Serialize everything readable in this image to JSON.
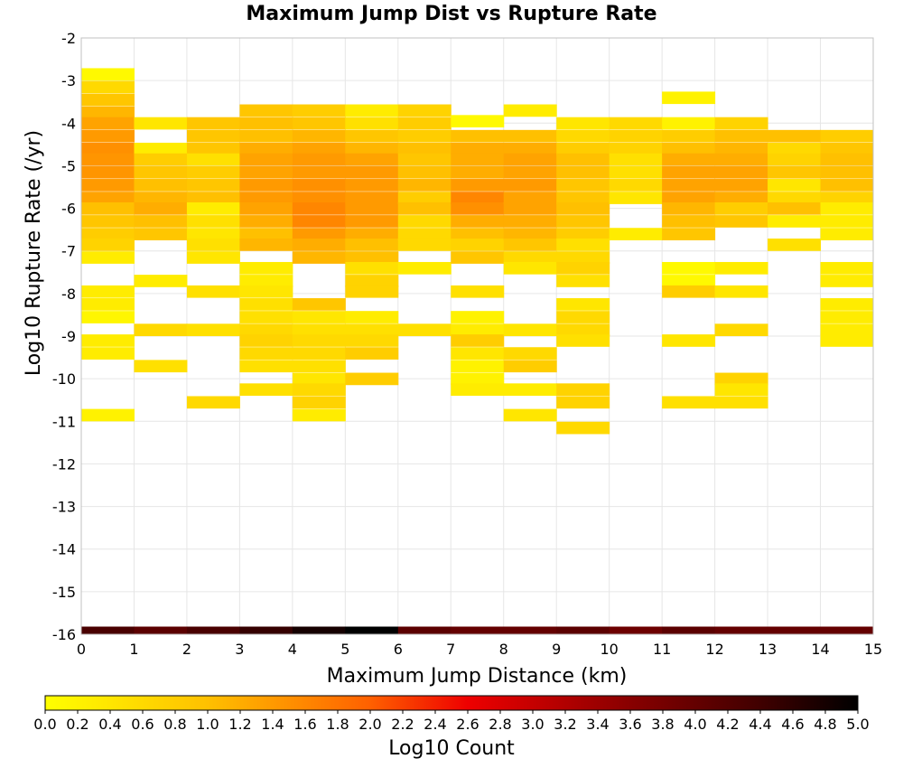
{
  "chart_data": {
    "type": "heatmap",
    "title": "Maximum Jump Dist vs Rupture Rate",
    "xlabel": "Maximum Jump Distance (km)",
    "ylabel": "Log10 Rupture Rate (/yr)",
    "xlim": [
      0,
      15
    ],
    "ylim": [
      -16,
      -2
    ],
    "x_ticks": [
      "0",
      "1",
      "2",
      "3",
      "4",
      "5",
      "6",
      "7",
      "8",
      "9",
      "10",
      "11",
      "12",
      "13",
      "14",
      "15"
    ],
    "y_ticks": [
      "-2",
      "-3",
      "-4",
      "-5",
      "-6",
      "-7",
      "-8",
      "-9",
      "-10",
      "-11",
      "-12",
      "-13",
      "-14",
      "-15",
      "-16"
    ],
    "grid": true,
    "x_bin_width": 1,
    "y_bin_height": 0.28,
    "colorbar": {
      "label": "Log10 Count",
      "range": [
        0,
        5
      ],
      "ticks": [
        "0.0",
        "0.2",
        "0.4",
        "0.6",
        "0.8",
        "1.0",
        "1.2",
        "1.4",
        "1.6",
        "1.8",
        "2.0",
        "2.2",
        "2.4",
        "2.6",
        "2.8",
        "3.0",
        "3.2",
        "3.4",
        "3.6",
        "3.8",
        "4.0",
        "4.2",
        "4.4",
        "4.6",
        "4.8",
        "5.0"
      ],
      "stops": [
        {
          "value": 0.0,
          "color": "#ffff00"
        },
        {
          "value": 1.0,
          "color": "#ffc000"
        },
        {
          "value": 2.0,
          "color": "#ff6000"
        },
        {
          "value": 2.6,
          "color": "#ee0000"
        },
        {
          "value": 3.6,
          "color": "#880000"
        },
        {
          "value": 4.4,
          "color": "#400000"
        },
        {
          "value": 5.0,
          "color": "#000000"
        }
      ]
    },
    "columns": [
      {
        "x": 0,
        "cells": [
          [
            -2.85,
            0.1
          ],
          [
            -3.15,
            0.6
          ],
          [
            -3.45,
            0.9
          ],
          [
            -3.75,
            1.1
          ],
          [
            -4.0,
            1.3
          ],
          [
            -4.3,
            1.4
          ],
          [
            -4.6,
            1.5
          ],
          [
            -4.85,
            1.45
          ],
          [
            -5.15,
            1.45
          ],
          [
            -5.45,
            1.4
          ],
          [
            -5.75,
            1.3
          ],
          [
            -6.0,
            1.0
          ],
          [
            -6.3,
            0.9
          ],
          [
            -6.6,
            0.8
          ],
          [
            -6.85,
            0.7
          ],
          [
            -7.15,
            0.3
          ],
          [
            -7.95,
            0.3
          ],
          [
            -8.25,
            0.3
          ],
          [
            -8.55,
            0.15
          ],
          [
            -9.1,
            0.3
          ],
          [
            -9.4,
            0.3
          ],
          [
            -10.85,
            0.2
          ]
        ]
      },
      {
        "x": 1,
        "cells": [
          [
            -4.0,
            0.4
          ],
          [
            -4.6,
            0.3
          ],
          [
            -4.85,
            0.8
          ],
          [
            -5.15,
            0.9
          ],
          [
            -5.45,
            1.0
          ],
          [
            -5.75,
            1.1
          ],
          [
            -6.0,
            1.2
          ],
          [
            -6.3,
            1.0
          ],
          [
            -6.6,
            0.9
          ],
          [
            -7.7,
            0.3
          ],
          [
            -8.85,
            0.6
          ],
          [
            -9.7,
            0.5
          ]
        ]
      },
      {
        "x": 2,
        "cells": [
          [
            -4.0,
            0.9
          ],
          [
            -4.3,
            0.9
          ],
          [
            -4.6,
            0.9
          ],
          [
            -4.85,
            0.5
          ],
          [
            -5.15,
            0.8
          ],
          [
            -5.45,
            0.9
          ],
          [
            -5.75,
            1.0
          ],
          [
            -6.0,
            0.3
          ],
          [
            -6.3,
            0.5
          ],
          [
            -6.6,
            0.4
          ],
          [
            -6.85,
            0.5
          ],
          [
            -7.15,
            0.4
          ],
          [
            -7.95,
            0.5
          ],
          [
            -8.85,
            0.5
          ],
          [
            -10.55,
            0.6
          ]
        ]
      },
      {
        "x": 3,
        "cells": [
          [
            -3.7,
            0.9
          ],
          [
            -4.0,
            1.0
          ],
          [
            -4.3,
            1.0
          ],
          [
            -4.6,
            1.2
          ],
          [
            -4.85,
            1.3
          ],
          [
            -5.15,
            1.3
          ],
          [
            -5.45,
            1.4
          ],
          [
            -5.75,
            1.4
          ],
          [
            -6.0,
            1.3
          ],
          [
            -6.3,
            1.2
          ],
          [
            -6.6,
            1.0
          ],
          [
            -6.85,
            1.1
          ],
          [
            -7.4,
            0.3
          ],
          [
            -7.7,
            0.3
          ],
          [
            -7.95,
            0.4
          ],
          [
            -8.25,
            0.5
          ],
          [
            -8.55,
            0.5
          ],
          [
            -8.85,
            0.6
          ],
          [
            -9.1,
            0.7
          ],
          [
            -9.4,
            0.6
          ],
          [
            -9.7,
            0.5
          ],
          [
            -10.25,
            0.5
          ]
        ]
      },
      {
        "x": 4,
        "cells": [
          [
            -3.7,
            0.8
          ],
          [
            -4.0,
            0.9
          ],
          [
            -4.3,
            1.1
          ],
          [
            -4.6,
            1.3
          ],
          [
            -4.85,
            1.4
          ],
          [
            -5.15,
            1.4
          ],
          [
            -5.45,
            1.5
          ],
          [
            -5.75,
            1.5
          ],
          [
            -6.0,
            1.6
          ],
          [
            -6.3,
            1.6
          ],
          [
            -6.6,
            1.4
          ],
          [
            -6.85,
            1.2
          ],
          [
            -7.15,
            1.1
          ],
          [
            -8.25,
            0.9
          ],
          [
            -8.55,
            0.4
          ],
          [
            -8.85,
            0.5
          ],
          [
            -9.1,
            0.6
          ],
          [
            -9.4,
            0.6
          ],
          [
            -9.7,
            0.5
          ],
          [
            -10.0,
            0.4
          ],
          [
            -10.25,
            0.6
          ],
          [
            -10.55,
            0.7
          ],
          [
            -10.85,
            0.3
          ]
        ]
      },
      {
        "x": 5,
        "cells": [
          [
            -3.7,
            0.3
          ],
          [
            -4.0,
            0.5
          ],
          [
            -4.3,
            0.9
          ],
          [
            -4.6,
            1.1
          ],
          [
            -4.85,
            1.3
          ],
          [
            -5.15,
            1.4
          ],
          [
            -5.45,
            1.4
          ],
          [
            -5.75,
            1.4
          ],
          [
            -6.0,
            1.4
          ],
          [
            -6.3,
            1.4
          ],
          [
            -6.6,
            1.2
          ],
          [
            -6.85,
            1.0
          ],
          [
            -7.15,
            1.0
          ],
          [
            -7.4,
            0.5
          ],
          [
            -7.7,
            0.7
          ],
          [
            -7.95,
            0.7
          ],
          [
            -8.55,
            0.3
          ],
          [
            -8.85,
            0.5
          ],
          [
            -9.1,
            0.6
          ],
          [
            -9.4,
            0.8
          ],
          [
            -10.0,
            0.8
          ]
        ]
      },
      {
        "x": 6,
        "cells": [
          [
            -3.7,
            0.7
          ],
          [
            -4.0,
            0.8
          ],
          [
            -4.3,
            0.8
          ],
          [
            -4.6,
            1.0
          ],
          [
            -4.85,
            0.9
          ],
          [
            -5.15,
            1.0
          ],
          [
            -5.45,
            1.1
          ],
          [
            -5.75,
            0.8
          ],
          [
            -6.0,
            1.0
          ],
          [
            -6.3,
            0.6
          ],
          [
            -6.6,
            0.6
          ],
          [
            -6.85,
            0.6
          ],
          [
            -7.4,
            0.3
          ],
          [
            -8.85,
            0.5
          ]
        ]
      },
      {
        "x": 7,
        "cells": [
          [
            -3.95,
            0.1
          ],
          [
            -4.3,
            1.0
          ],
          [
            -4.6,
            1.2
          ],
          [
            -4.85,
            1.2
          ],
          [
            -5.15,
            1.2
          ],
          [
            -5.45,
            1.4
          ],
          [
            -5.75,
            1.6
          ],
          [
            -6.0,
            1.5
          ],
          [
            -6.3,
            1.2
          ],
          [
            -6.6,
            1.0
          ],
          [
            -6.85,
            0.7
          ],
          [
            -7.15,
            0.9
          ],
          [
            -7.95,
            0.5
          ],
          [
            -8.55,
            0.2
          ],
          [
            -8.85,
            0.3
          ],
          [
            -9.1,
            0.8
          ],
          [
            -9.4,
            0.4
          ],
          [
            -9.7,
            0.2
          ],
          [
            -10.0,
            0.2
          ],
          [
            -10.25,
            0.3
          ]
        ]
      },
      {
        "x": 8,
        "cells": [
          [
            -3.7,
            0.3
          ],
          [
            -4.3,
            1.0
          ],
          [
            -4.6,
            1.2
          ],
          [
            -4.85,
            1.3
          ],
          [
            -5.15,
            1.3
          ],
          [
            -5.45,
            1.4
          ],
          [
            -5.75,
            1.3
          ],
          [
            -6.0,
            1.3
          ],
          [
            -6.3,
            1.2
          ],
          [
            -6.6,
            1.1
          ],
          [
            -6.85,
            0.9
          ],
          [
            -7.15,
            0.6
          ],
          [
            -7.4,
            0.4
          ],
          [
            -8.85,
            0.4
          ],
          [
            -9.4,
            0.6
          ],
          [
            -9.7,
            0.8
          ],
          [
            -10.25,
            0.3
          ],
          [
            -10.85,
            0.4
          ]
        ]
      },
      {
        "x": 9,
        "cells": [
          [
            -4.0,
            0.4
          ],
          [
            -4.3,
            0.6
          ],
          [
            -4.6,
            0.8
          ],
          [
            -4.85,
            1.0
          ],
          [
            -5.15,
            1.0
          ],
          [
            -5.45,
            0.9
          ],
          [
            -5.75,
            0.9
          ],
          [
            -6.0,
            1.0
          ],
          [
            -6.3,
            0.9
          ],
          [
            -6.6,
            0.8
          ],
          [
            -6.85,
            0.5
          ],
          [
            -7.15,
            0.6
          ],
          [
            -7.4,
            0.7
          ],
          [
            -7.7,
            0.5
          ],
          [
            -8.25,
            0.4
          ],
          [
            -8.55,
            0.6
          ],
          [
            -8.85,
            0.6
          ],
          [
            -9.1,
            0.5
          ],
          [
            -10.25,
            0.7
          ],
          [
            -10.55,
            0.7
          ],
          [
            -11.15,
            0.6
          ]
        ]
      },
      {
        "x": 10,
        "cells": [
          [
            -4.0,
            0.6
          ],
          [
            -4.3,
            0.7
          ],
          [
            -4.6,
            0.7
          ],
          [
            -4.85,
            0.5
          ],
          [
            -5.15,
            0.5
          ],
          [
            -5.45,
            0.6
          ],
          [
            -5.75,
            0.4
          ],
          [
            -6.6,
            0.3
          ]
        ]
      },
      {
        "x": 11,
        "cells": [
          [
            -3.4,
            0.2
          ],
          [
            -4.0,
            0.2
          ],
          [
            -4.3,
            0.8
          ],
          [
            -4.6,
            1.0
          ],
          [
            -4.85,
            1.2
          ],
          [
            -5.15,
            1.3
          ],
          [
            -5.45,
            1.3
          ],
          [
            -5.75,
            1.3
          ],
          [
            -6.0,
            1.1
          ],
          [
            -6.3,
            1.0
          ],
          [
            -6.6,
            0.9
          ],
          [
            -7.4,
            0.1
          ],
          [
            -7.7,
            0.1
          ],
          [
            -7.95,
            0.8
          ],
          [
            -9.1,
            0.4
          ],
          [
            -10.55,
            0.5
          ]
        ]
      },
      {
        "x": 12,
        "cells": [
          [
            -4.0,
            0.7
          ],
          [
            -4.3,
            1.0
          ],
          [
            -4.6,
            1.1
          ],
          [
            -4.85,
            1.2
          ],
          [
            -5.15,
            1.3
          ],
          [
            -5.45,
            1.3
          ],
          [
            -5.75,
            1.2
          ],
          [
            -6.0,
            0.8
          ],
          [
            -6.3,
            0.9
          ],
          [
            -7.4,
            0.3
          ],
          [
            -7.95,
            0.4
          ],
          [
            -8.85,
            0.6
          ],
          [
            -10.0,
            0.7
          ],
          [
            -10.25,
            0.4
          ],
          [
            -10.55,
            0.5
          ]
        ]
      },
      {
        "x": 13,
        "cells": [
          [
            -4.3,
            1.0
          ],
          [
            -4.6,
            0.6
          ],
          [
            -4.85,
            0.7
          ],
          [
            -5.15,
            0.9
          ],
          [
            -5.45,
            0.4
          ],
          [
            -5.75,
            0.6
          ],
          [
            -6.0,
            1.0
          ],
          [
            -6.3,
            0.3
          ],
          [
            -6.85,
            0.5
          ]
        ]
      },
      {
        "x": 14,
        "cells": [
          [
            -4.3,
            0.8
          ],
          [
            -4.6,
            0.9
          ],
          [
            -4.85,
            1.0
          ],
          [
            -5.15,
            1.0
          ],
          [
            -5.45,
            1.0
          ],
          [
            -5.75,
            0.7
          ],
          [
            -6.0,
            0.3
          ],
          [
            -6.3,
            0.3
          ],
          [
            -6.6,
            0.3
          ],
          [
            -7.4,
            0.3
          ],
          [
            -7.7,
            0.3
          ],
          [
            -8.25,
            0.3
          ],
          [
            -8.55,
            0.3
          ],
          [
            -8.85,
            0.3
          ],
          [
            -9.1,
            0.3
          ]
        ]
      }
    ],
    "bottom_row": {
      "y": -16,
      "values": [
        4.3,
        4.1,
        4.3,
        4.5,
        4.8,
        5.0,
        4.1,
        4.0,
        4.0,
        4.1,
        3.9,
        4.1,
        4.0,
        4.0,
        4.0
      ]
    }
  }
}
